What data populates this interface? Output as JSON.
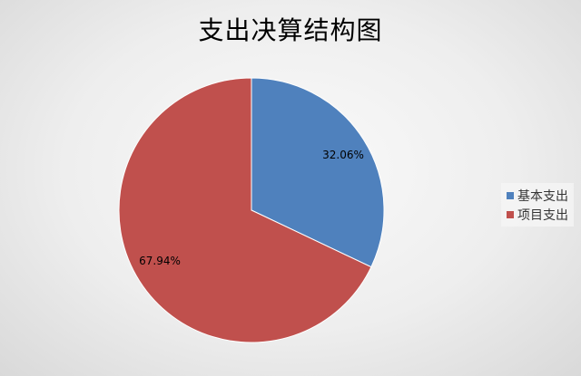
{
  "chart_data": {
    "type": "pie",
    "title": "支出决算结构图",
    "categories": [
      "基本支出",
      "项目支出"
    ],
    "values": [
      32.06,
      67.94
    ],
    "data_labels": [
      "32.06%",
      "67.94%"
    ],
    "colors": [
      "#4f81bd",
      "#c0504d"
    ],
    "start_angle": "12 o'clock",
    "direction": "clockwise",
    "legend_position": "right"
  }
}
